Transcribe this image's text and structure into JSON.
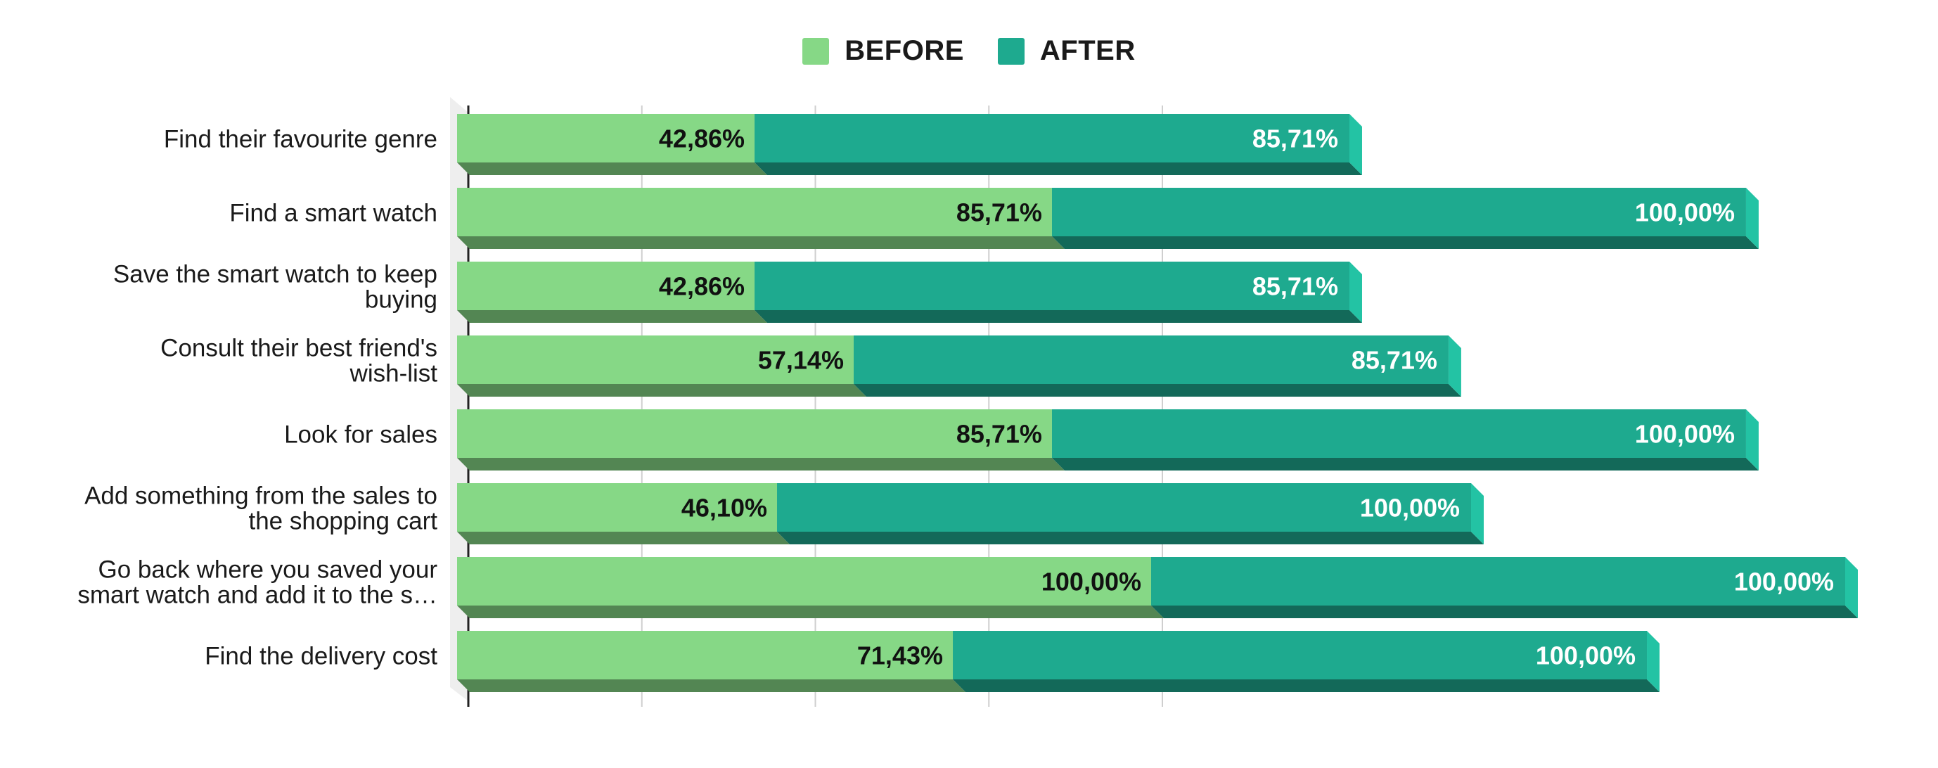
{
  "chart_data": {
    "type": "bar",
    "orientation": "horizontal",
    "stacked": true,
    "style": "3d",
    "categories": [
      "Find their favourite genre",
      "Find a smart watch",
      "Save the smart watch to keep buying",
      "Consult their best friend's wish-list",
      "Look for sales",
      "Add something from the sales to the shopping cart",
      "Go back where you saved your smart watch and add it to the s…",
      "Find the delivery cost"
    ],
    "category_lines": [
      [
        "Find their favourite genre"
      ],
      [
        "Find a smart watch"
      ],
      [
        "Save the smart watch to keep",
        "buying"
      ],
      [
        "Consult their best friend's",
        "wish-list"
      ],
      [
        "Look for sales"
      ],
      [
        "Add something from the sales to",
        "the shopping cart"
      ],
      [
        "Go back where you saved your",
        "smart watch and add it to the s…"
      ],
      [
        "Find the delivery cost"
      ]
    ],
    "series": [
      {
        "name": "BEFORE",
        "color": "#86d886",
        "values": [
          42.86,
          85.71,
          42.86,
          57.14,
          85.71,
          46.1,
          100.0,
          71.43
        ],
        "labels": [
          "42,86%",
          "85,71%",
          "42,86%",
          "57,14%",
          "85,71%",
          "46,10%",
          "100,00%",
          "71,43%"
        ]
      },
      {
        "name": "AFTER",
        "color": "#1eaa8f",
        "values": [
          85.71,
          100.0,
          85.71,
          85.71,
          100.0,
          100.0,
          100.0,
          100.0
        ],
        "labels": [
          "85,71%",
          "100,00%",
          "85,71%",
          "85,71%",
          "100,00%",
          "100,00%",
          "100,00%",
          "100,00%"
        ]
      }
    ],
    "xlim": [
      0,
      200
    ],
    "grid": true,
    "legend_position": "top-center"
  }
}
